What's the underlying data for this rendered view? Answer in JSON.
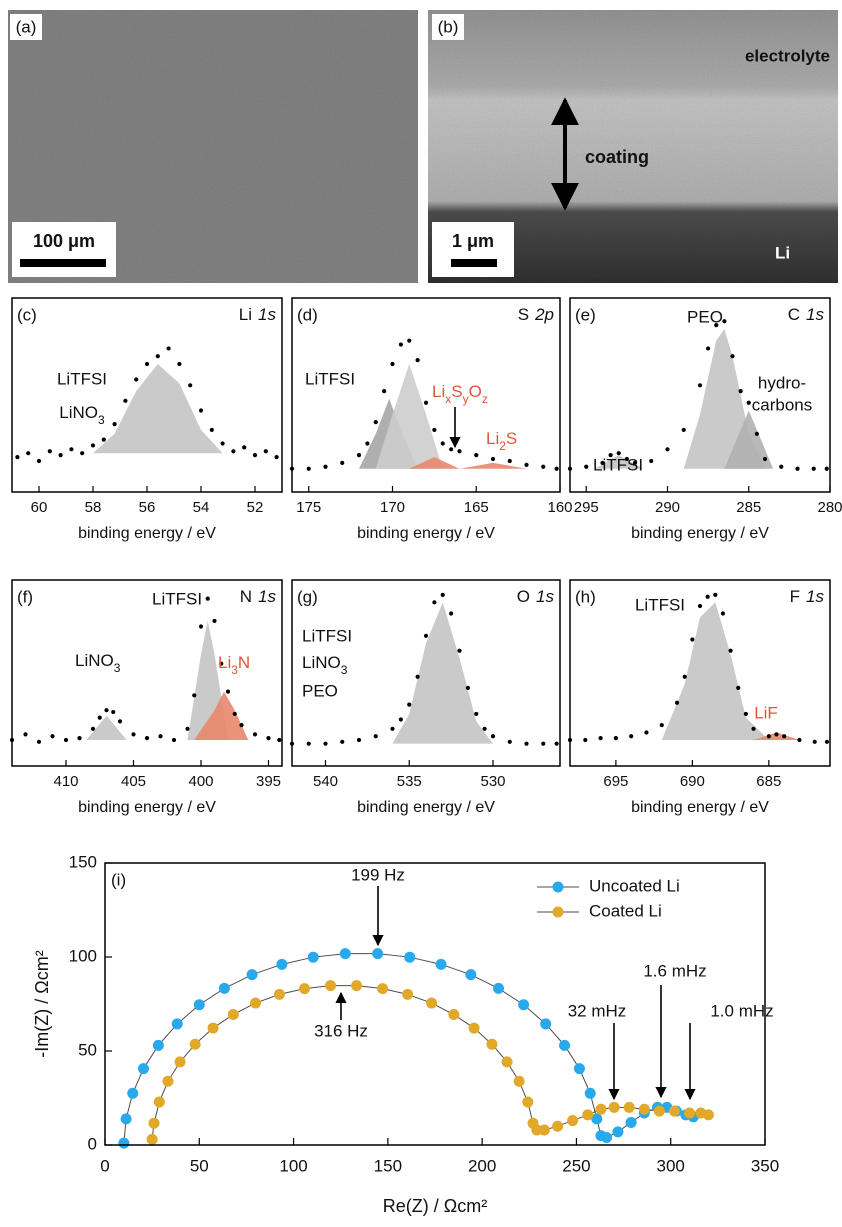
{
  "images": {
    "a": {
      "label": "(a)",
      "scale": "100 μm"
    },
    "b": {
      "label": "(b)",
      "scale": "1 μm",
      "electrolyte": "electrolyte",
      "coating": "coating",
      "li": "Li"
    }
  },
  "chart_data": [
    {
      "type": "spectrum",
      "label": "(c)",
      "element": "Li",
      "orbital": "1s",
      "xlabel": "binding energy / eV",
      "xlim": [
        61,
        51
      ],
      "xticks": [
        60,
        58,
        56,
        54,
        52
      ],
      "ylim": [
        0,
        1
      ],
      "color": "#000000",
      "x": [
        60.8,
        60.4,
        60.0,
        59.6,
        59.2,
        58.8,
        58.4,
        58.0,
        57.6,
        57.2,
        56.8,
        56.4,
        56.0,
        55.6,
        55.2,
        54.8,
        54.4,
        54.0,
        53.6,
        53.2,
        52.8,
        52.4,
        52.0,
        51.6,
        51.2
      ],
      "values": [
        0.18,
        0.2,
        0.16,
        0.21,
        0.19,
        0.22,
        0.2,
        0.24,
        0.27,
        0.35,
        0.47,
        0.58,
        0.66,
        0.7,
        0.74,
        0.66,
        0.55,
        0.42,
        0.32,
        0.25,
        0.21,
        0.23,
        0.19,
        0.21,
        0.18
      ],
      "components": [
        {
          "color": "#c4c4c4",
          "x": [
            58,
            57.2,
            56.4,
            55.6,
            54.8,
            54,
            53.2
          ],
          "values": [
            0.2,
            0.3,
            0.52,
            0.66,
            0.56,
            0.32,
            0.2
          ]
        }
      ],
      "annotations": [
        {
          "text": "LiTFSI"
        },
        {
          "text": [
            "LiNO",
            "3"
          ]
        }
      ]
    },
    {
      "type": "spectrum",
      "label": "(d)",
      "element": "S",
      "orbital": "2p",
      "xlabel": "binding energy / eV",
      "xlim": [
        176,
        160
      ],
      "xticks": [
        175,
        170,
        165,
        160
      ],
      "ylim": [
        0,
        1
      ],
      "color": "#000000",
      "x": [
        176,
        175,
        174,
        173,
        172,
        171.5,
        171,
        170.5,
        170,
        169.5,
        169,
        168.5,
        168,
        167.5,
        167,
        166.5,
        166,
        165,
        164,
        163,
        162,
        161,
        160.2
      ],
      "values": [
        0.12,
        0.12,
        0.13,
        0.15,
        0.19,
        0.25,
        0.36,
        0.52,
        0.66,
        0.76,
        0.78,
        0.68,
        0.46,
        0.32,
        0.25,
        0.22,
        0.21,
        0.19,
        0.17,
        0.16,
        0.14,
        0.13,
        0.12
      ],
      "components": [
        {
          "color": "#a6a6a6",
          "x": [
            172,
            171,
            170.2,
            169.4,
            168.5
          ],
          "values": [
            0.12,
            0.3,
            0.48,
            0.3,
            0.12
          ]
        },
        {
          "color": "#cdcdcd",
          "x": [
            171,
            170,
            169,
            168,
            167
          ],
          "values": [
            0.12,
            0.4,
            0.66,
            0.4,
            0.12
          ]
        },
        {
          "color": "#e8866c",
          "x": [
            169,
            167.5,
            166
          ],
          "values": [
            0.12,
            0.18,
            0.12
          ]
        },
        {
          "color": "#e8866c",
          "x": [
            166,
            164,
            162
          ],
          "values": [
            0.12,
            0.15,
            0.12
          ]
        }
      ],
      "annotations": [
        {
          "text": "LiTFSI"
        },
        {
          "text": [
            "Li",
            "x",
            "S",
            "y",
            "O",
            "z"
          ],
          "color": "#e0563a"
        },
        {
          "text": [
            "Li",
            "2",
            "S"
          ],
          "color": "#e0563a"
        }
      ]
    },
    {
      "type": "spectrum",
      "label": "(e)",
      "element": "C",
      "orbital": "1s",
      "xlabel": "binding energy / eV",
      "xlim": [
        296,
        280
      ],
      "xticks": [
        295,
        290,
        285,
        280
      ],
      "ylim": [
        0,
        1
      ],
      "color": "#000000",
      "x": [
        296,
        295,
        294,
        293.5,
        293,
        292.5,
        292,
        291,
        290,
        289,
        288,
        287.5,
        287,
        286.5,
        286,
        285.5,
        285,
        284.5,
        284,
        283,
        282,
        281,
        280.2
      ],
      "values": [
        0.12,
        0.13,
        0.15,
        0.19,
        0.2,
        0.17,
        0.15,
        0.16,
        0.22,
        0.32,
        0.55,
        0.74,
        0.86,
        0.88,
        0.7,
        0.52,
        0.46,
        0.3,
        0.17,
        0.13,
        0.12,
        0.12,
        0.12
      ],
      "components": [
        {
          "color": "#c4c4c4",
          "x": [
            294.5,
            293,
            291.5
          ],
          "values": [
            0.12,
            0.19,
            0.12
          ]
        },
        {
          "color": "#c4c4c4",
          "x": [
            289,
            288,
            287,
            286.5,
            286,
            285,
            284
          ],
          "values": [
            0.12,
            0.4,
            0.78,
            0.84,
            0.7,
            0.3,
            0.12
          ]
        },
        {
          "color": "#b0b0b0",
          "x": [
            286.5,
            285,
            283.5
          ],
          "values": [
            0.12,
            0.42,
            0.12
          ]
        }
      ],
      "annotations": [
        {
          "text": "LiTFSI"
        },
        {
          "text": "PEO"
        },
        {
          "text": "hydro-"
        },
        {
          "text": "carbons"
        }
      ]
    },
    {
      "type": "spectrum",
      "label": "(f)",
      "element": "N",
      "orbital": "1s",
      "xlabel": "binding energy / eV",
      "xlim": [
        414,
        394
      ],
      "xticks": [
        410,
        405,
        400,
        395
      ],
      "ylim": [
        0,
        1
      ],
      "color": "#000000",
      "x": [
        414,
        413,
        412,
        411,
        410,
        409,
        408,
        407.5,
        407,
        406.5,
        406,
        405,
        404,
        403,
        402,
        401,
        400.5,
        400,
        399.5,
        399,
        398.5,
        398,
        397.5,
        397,
        396,
        395,
        394.2
      ],
      "values": [
        0.14,
        0.17,
        0.13,
        0.16,
        0.14,
        0.15,
        0.2,
        0.26,
        0.3,
        0.29,
        0.24,
        0.17,
        0.15,
        0.16,
        0.14,
        0.2,
        0.38,
        0.75,
        0.9,
        0.78,
        0.55,
        0.4,
        0.28,
        0.22,
        0.17,
        0.15,
        0.14
      ],
      "components": [
        {
          "color": "#c4c4c4",
          "x": [
            408.5,
            407,
            405.5
          ],
          "values": [
            0.14,
            0.27,
            0.14
          ]
        },
        {
          "color": "#c4c4c4",
          "x": [
            401,
            400,
            399.5,
            399,
            398
          ],
          "values": [
            0.14,
            0.6,
            0.78,
            0.6,
            0.14
          ]
        },
        {
          "color": "#e8866c",
          "x": [
            400.5,
            399,
            398.3,
            397.5,
            396.5
          ],
          "values": [
            0.14,
            0.3,
            0.4,
            0.3,
            0.14
          ]
        }
      ],
      "annotations": [
        {
          "text": [
            "LiNO",
            "3"
          ]
        },
        {
          "text": "LiTFSI"
        },
        {
          "text": [
            "Li",
            "3",
            "N"
          ],
          "color": "#e0563a"
        }
      ]
    },
    {
      "type": "spectrum",
      "label": "(g)",
      "element": "O",
      "orbital": "1s",
      "xlabel": "binding energy / eV",
      "xlim": [
        542,
        526
      ],
      "xticks": [
        540,
        535,
        530
      ],
      "ylim": [
        0,
        1
      ],
      "color": "#000000",
      "x": [
        542,
        541,
        540,
        539,
        538,
        537,
        536,
        535.5,
        535,
        534.5,
        534,
        533.5,
        533,
        532.5,
        532,
        531.5,
        531,
        530.5,
        530,
        529,
        528,
        527,
        526.2
      ],
      "values": [
        0.12,
        0.12,
        0.12,
        0.13,
        0.14,
        0.16,
        0.2,
        0.25,
        0.33,
        0.48,
        0.7,
        0.88,
        0.92,
        0.82,
        0.62,
        0.42,
        0.28,
        0.2,
        0.16,
        0.13,
        0.12,
        0.12,
        0.12
      ],
      "components": [
        {
          "color": "#c4c4c4",
          "x": [
            536,
            535,
            534,
            533,
            532,
            531,
            530
          ],
          "values": [
            0.12,
            0.28,
            0.66,
            0.88,
            0.58,
            0.24,
            0.12
          ]
        }
      ],
      "annotations": [
        {
          "text": "LiTFSI"
        },
        {
          "text": [
            "LiNO",
            "3"
          ]
        },
        {
          "text": "PEO"
        }
      ]
    },
    {
      "type": "spectrum",
      "label": "(h)",
      "element": "F",
      "orbital": "1s",
      "xlabel": "binding energy / eV",
      "xlim": [
        698,
        681
      ],
      "xticks": [
        695,
        690,
        685
      ],
      "ylim": [
        0,
        1
      ],
      "color": "#000000",
      "x": [
        698,
        697,
        696,
        695,
        694,
        693,
        692,
        691,
        690.5,
        690,
        689.5,
        689,
        688.5,
        688,
        687.5,
        687,
        686.5,
        686,
        685,
        684.5,
        684,
        683,
        682,
        681.2
      ],
      "values": [
        0.14,
        0.14,
        0.15,
        0.15,
        0.16,
        0.18,
        0.22,
        0.34,
        0.48,
        0.68,
        0.86,
        0.91,
        0.92,
        0.82,
        0.62,
        0.42,
        0.28,
        0.2,
        0.16,
        0.17,
        0.16,
        0.14,
        0.13,
        0.13
      ],
      "components": [
        {
          "color": "#c4c4c4",
          "x": [
            692,
            690.5,
            689.5,
            688.5,
            687.5,
            686.5,
            685
          ],
          "values": [
            0.14,
            0.44,
            0.8,
            0.88,
            0.6,
            0.26,
            0.14
          ]
        },
        {
          "color": "#e8866c",
          "x": [
            686,
            684.5,
            683
          ],
          "values": [
            0.14,
            0.18,
            0.14
          ]
        }
      ],
      "annotations": [
        {
          "text": "LiTFSI"
        },
        {
          "text": "LiF",
          "color": "#e0563a"
        }
      ]
    },
    {
      "type": "scatter",
      "label": "(i)",
      "xlabel": "Re(Z) / Ωcm²",
      "ylabel": "-Im(Z) / Ωcm²",
      "xlim": [
        0,
        350
      ],
      "xticks": [
        0,
        50,
        100,
        150,
        200,
        250,
        300,
        350
      ],
      "ylim": [
        0,
        150
      ],
      "yticks": [
        0,
        50,
        100,
        150
      ],
      "line_color": "#4d4d4d",
      "legend": "top-right",
      "series": [
        {
          "name": "Uncoated Li",
          "color": "#29a8ec",
          "x": [
            10,
            11.2,
            14.7,
            20.4,
            28.3,
            38.3,
            50.0,
            63.3,
            78.0,
            93.8,
            110.4,
            127.4,
            144.6,
            161.6,
            178.2,
            194.0,
            208.7,
            222.0,
            233.7,
            243.7,
            251.6,
            257.3,
            260.8,
            263,
            266,
            272,
            279,
            286,
            293,
            298,
            303,
            308,
            312
          ],
          "values": [
            1,
            13.9,
            27.5,
            40.6,
            53.0,
            64.4,
            74.6,
            83.3,
            90.6,
            96.1,
            99.9,
            101.8,
            101.8,
            99.9,
            96.1,
            90.6,
            83.3,
            74.6,
            64.4,
            53.0,
            40.6,
            27.5,
            13.9,
            5,
            4,
            7,
            12,
            17,
            20,
            20,
            18,
            16,
            15
          ]
        },
        {
          "name": "Coated Li",
          "color": "#e2a82a",
          "x": [
            25,
            26.0,
            28.8,
            33.4,
            39.8,
            47.8,
            57.3,
            68.0,
            79.8,
            92.5,
            105.8,
            119.6,
            133.4,
            147.2,
            160.5,
            173.2,
            185.0,
            195.7,
            205.2,
            213.2,
            219.6,
            224.2,
            227.0,
            229,
            233,
            240,
            248,
            256,
            263,
            270,
            278,
            286,
            294,
            302,
            310,
            316,
            320
          ],
          "values": [
            3,
            11.6,
            22.9,
            33.9,
            44.2,
            53.6,
            62.2,
            69.4,
            75.5,
            80.1,
            83.2,
            84.8,
            84.8,
            83.2,
            80.1,
            75.5,
            69.4,
            62.2,
            53.6,
            44.2,
            33.9,
            22.9,
            11.6,
            8,
            8,
            10,
            13,
            16,
            19,
            20,
            20,
            19,
            18,
            18,
            17,
            17,
            16
          ]
        }
      ],
      "annotations": [
        {
          "text": "199 Hz"
        },
        {
          "text": "316 Hz"
        },
        {
          "text": "32 mHz"
        },
        {
          "text": "1.6 mHz"
        },
        {
          "text": "1.0 mHz"
        }
      ]
    }
  ]
}
